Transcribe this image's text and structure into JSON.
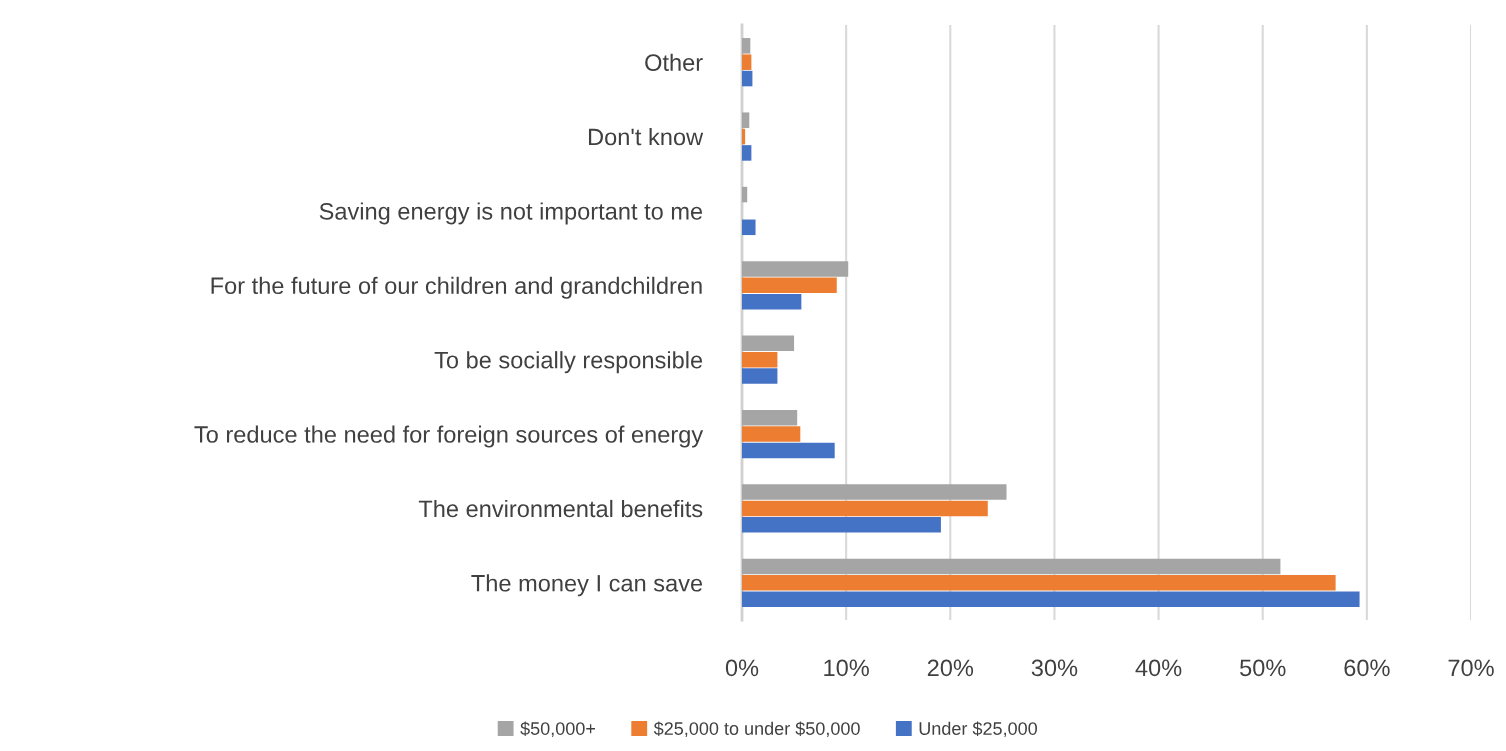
{
  "chart_data": {
    "type": "bar",
    "orientation": "horizontal",
    "categories": [
      "Other",
      "Don't know",
      "Saving energy is not important to me",
      "For the future of our children and grandchildren",
      "To be socially responsible",
      "To reduce the need for foreign sources of energy",
      "The environmental benefits",
      "The money I can save"
    ],
    "series": [
      {
        "name": "$50,000+",
        "color": "#a5a5a5",
        "values": [
          0.8,
          0.7,
          0.5,
          10.2,
          5.0,
          5.3,
          25.4,
          51.7
        ]
      },
      {
        "name": "$25,000 to under $50,000",
        "color": "#ed7d31",
        "values": [
          0.9,
          0.3,
          0,
          9.1,
          3.4,
          5.6,
          23.6,
          57.0
        ]
      },
      {
        "name": "Under $25,000",
        "color": "#4472c4",
        "values": [
          1.0,
          0.9,
          1.3,
          5.7,
          3.4,
          8.9,
          19.1,
          59.3
        ]
      }
    ],
    "xlim": [
      0,
      70
    ],
    "xticks": [
      {
        "value": 0,
        "label": "0%"
      },
      {
        "value": 10,
        "label": "10%"
      },
      {
        "value": 20,
        "label": "20%"
      },
      {
        "value": 30,
        "label": "30%"
      },
      {
        "value": 40,
        "label": "40%"
      },
      {
        "value": 50,
        "label": "50%"
      },
      {
        "value": 60,
        "label": "60%"
      },
      {
        "value": 70,
        "label": "70%"
      }
    ],
    "grid": "x",
    "legend": "bottom"
  }
}
